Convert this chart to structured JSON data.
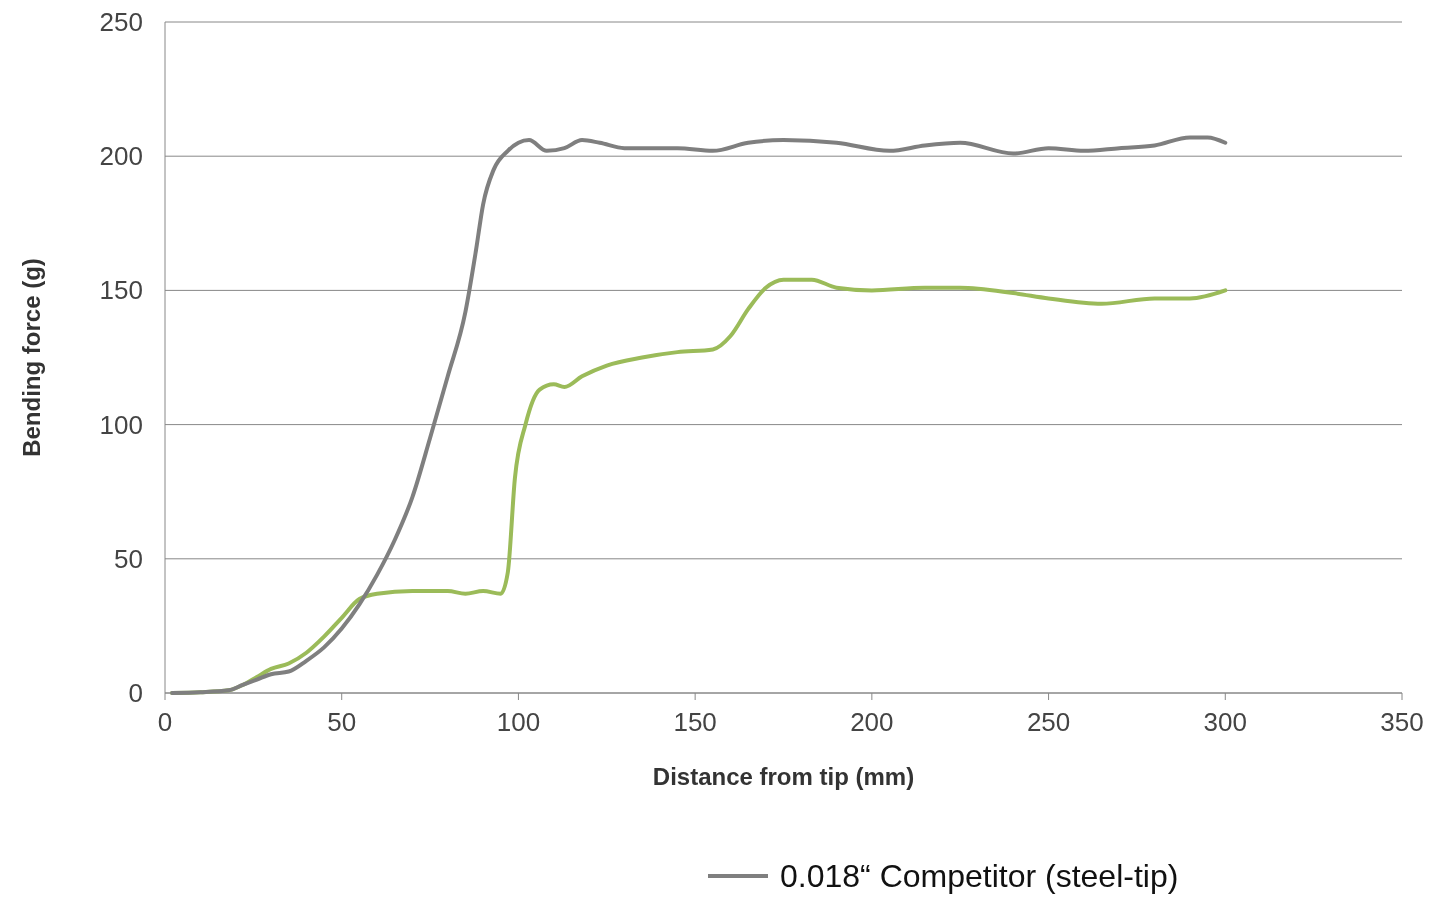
{
  "chart_data": {
    "type": "line",
    "xlabel": "Distance from tip (mm)",
    "ylabel": "Bending force (g)",
    "xlim": [
      0,
      350
    ],
    "xticks": [
      0,
      50,
      100,
      150,
      200,
      250,
      300,
      350
    ],
    "ylim": [
      0,
      250
    ],
    "yticks": [
      0,
      50,
      100,
      150,
      200,
      250
    ],
    "grid": "y",
    "legend": "bottom",
    "marker": "none",
    "line_style": "solid",
    "series": [
      {
        "color": "#9bbb59",
        "x": [
          2,
          10,
          18,
          22,
          26,
          30,
          35,
          40,
          45,
          50,
          55,
          60,
          70,
          80,
          85,
          90,
          95,
          97,
          99,
          102,
          106,
          110,
          113,
          118,
          125,
          135,
          145,
          155,
          160,
          165,
          170,
          175,
          183,
          190,
          200,
          215,
          225,
          240,
          250,
          265,
          280,
          290,
          300
        ],
        "values": [
          0,
          0.3,
          1,
          3,
          6,
          9,
          11,
          15,
          21,
          28,
          35,
          37,
          38,
          38,
          37,
          38,
          37,
          45,
          80,
          100,
          113,
          115,
          114,
          118,
          122,
          125,
          127,
          128,
          133,
          143,
          151,
          154,
          154,
          151,
          150,
          151,
          151,
          149,
          147,
          145,
          147,
          147,
          150
        ]
      },
      {
        "name": "0.018“ Competitor (steel-tip)",
        "color": "#7f7f7f",
        "x": [
          2,
          10,
          18,
          22,
          26,
          30,
          35,
          40,
          45,
          50,
          55,
          60,
          65,
          70,
          75,
          80,
          85,
          88,
          90,
          93,
          97,
          100,
          103,
          108,
          113,
          118,
          123,
          130,
          140,
          145,
          155,
          165,
          175,
          190,
          205,
          215,
          225,
          240,
          250,
          260,
          270,
          280,
          290,
          295,
          300
        ],
        "values": [
          0,
          0.3,
          1,
          3,
          5,
          7,
          8,
          12,
          17,
          24,
          33,
          44,
          57,
          73,
          95,
          118,
          142,
          165,
          182,
          195,
          202,
          205,
          206,
          202,
          203,
          206,
          205,
          203,
          203,
          203,
          202,
          205,
          206,
          205,
          202,
          204,
          205,
          201,
          203,
          202,
          203,
          204,
          207,
          207,
          205
        ]
      }
    ]
  }
}
